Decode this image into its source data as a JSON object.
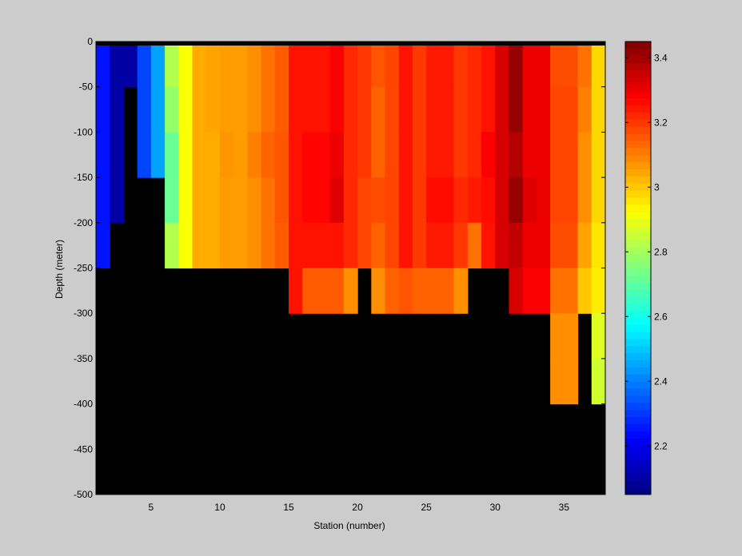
{
  "chart_data": {
    "type": "heatmap",
    "title": "",
    "xlabel": "Station (number)",
    "ylabel": "Depth (meter)",
    "xlim": [
      1,
      38
    ],
    "ylim": [
      -500,
      0
    ],
    "xticks": [
      5,
      10,
      15,
      20,
      25,
      30,
      35
    ],
    "yticks": [
      0,
      -50,
      -100,
      -150,
      -200,
      -250,
      -300,
      -350,
      -400,
      -450,
      -500
    ],
    "colorbar": {
      "colormap": "jet",
      "range": [
        2.05,
        3.45
      ],
      "ticks": [
        2.2,
        2.4,
        2.6,
        2.8,
        3,
        3.2,
        3.4
      ],
      "tick_labels": [
        "2.2",
        "2.4",
        "2.6",
        "2.8",
        "3",
        "3.2",
        "3.4"
      ]
    },
    "grid": false,
    "background_color": "#cccccc",
    "missing_color": "#000000",
    "depth_bins": [
      [
        0,
        -50
      ],
      [
        -50,
        -100
      ],
      [
        -100,
        -150
      ],
      [
        -150,
        -200
      ],
      [
        -200,
        -250
      ],
      [
        -250,
        -300
      ],
      [
        -300,
        -350
      ],
      [
        -350,
        -400
      ]
    ],
    "stations": [
      {
        "station": 1,
        "values": [
          2.25,
          2.25,
          2.25,
          2.25,
          2.25
        ]
      },
      {
        "station": 2,
        "values": [
          2.1,
          2.1,
          2.1,
          2.1
        ]
      },
      {
        "station": 3,
        "values": [
          2.1
        ]
      },
      {
        "station": 4,
        "values": [
          2.32,
          2.32,
          2.32
        ]
      },
      {
        "station": 5,
        "values": [
          2.45,
          2.45,
          2.45
        ]
      },
      {
        "station": 6,
        "values": [
          2.82,
          2.78,
          2.72,
          2.72,
          2.82
        ]
      },
      {
        "station": 7,
        "values": [
          2.92,
          2.92,
          2.92,
          2.92,
          2.92
        ]
      },
      {
        "station": 8,
        "values": [
          3.04,
          3.04,
          3.04,
          3.04,
          3.04
        ]
      },
      {
        "station": 9,
        "values": [
          3.05,
          3.05,
          3.04,
          3.04,
          3.04
        ]
      },
      {
        "station": 10,
        "values": [
          3.06,
          3.06,
          3.07,
          3.06,
          3.06
        ]
      },
      {
        "station": 11,
        "values": [
          3.06,
          3.06,
          3.06,
          3.06,
          3.06
        ]
      },
      {
        "station": 12,
        "values": [
          3.08,
          3.08,
          3.1,
          3.08,
          3.08
        ]
      },
      {
        "station": 13,
        "values": [
          3.12,
          3.12,
          3.14,
          3.12,
          3.12
        ]
      },
      {
        "station": 14,
        "values": [
          3.15,
          3.15,
          3.16,
          3.16,
          3.15
        ]
      },
      {
        "station": 15,
        "values": [
          3.25,
          3.25,
          3.25,
          3.25,
          3.25,
          3.25
        ]
      },
      {
        "station": 16,
        "values": [
          3.25,
          3.25,
          3.27,
          3.27,
          3.25,
          3.15
        ]
      },
      {
        "station": 17,
        "values": [
          3.25,
          3.25,
          3.27,
          3.27,
          3.25,
          3.15
        ]
      },
      {
        "station": 18,
        "values": [
          3.28,
          3.28,
          3.3,
          3.32,
          3.25,
          3.15
        ]
      },
      {
        "station": 19,
        "values": [
          3.22,
          3.22,
          3.22,
          3.22,
          3.22,
          3.08
        ]
      },
      {
        "station": 20,
        "values": [
          3.2,
          3.2,
          3.2,
          3.18,
          3.18
        ]
      },
      {
        "station": 21,
        "values": [
          3.16,
          3.14,
          3.14,
          3.17,
          3.14,
          3.08
        ]
      },
      {
        "station": 22,
        "values": [
          3.18,
          3.18,
          3.18,
          3.18,
          3.18,
          3.14
        ]
      },
      {
        "station": 23,
        "values": [
          3.25,
          3.25,
          3.25,
          3.25,
          3.25,
          3.16
        ]
      },
      {
        "station": 24,
        "values": [
          3.2,
          3.2,
          3.2,
          3.2,
          3.2,
          3.14
        ]
      },
      {
        "station": 25,
        "values": [
          3.24,
          3.24,
          3.24,
          3.26,
          3.24,
          3.14
        ]
      },
      {
        "station": 26,
        "values": [
          3.24,
          3.24,
          3.24,
          3.26,
          3.24,
          3.14
        ]
      },
      {
        "station": 27,
        "values": [
          3.2,
          3.2,
          3.2,
          3.22,
          3.2,
          3.08
        ]
      },
      {
        "station": 28,
        "values": [
          3.22,
          3.22,
          3.22,
          3.24,
          3.12
        ]
      },
      {
        "station": 29,
        "values": [
          3.25,
          3.25,
          3.28,
          3.26,
          3.25
        ]
      },
      {
        "station": 30,
        "values": [
          3.33,
          3.33,
          3.33,
          3.33,
          3.33
        ]
      },
      {
        "station": 31,
        "values": [
          3.42,
          3.42,
          3.38,
          3.42,
          3.36,
          3.33
        ]
      },
      {
        "station": 32,
        "values": [
          3.3,
          3.3,
          3.3,
          3.32,
          3.3,
          3.28
        ]
      },
      {
        "station": 33,
        "values": [
          3.3,
          3.3,
          3.3,
          3.3,
          3.3,
          3.28
        ]
      },
      {
        "station": 34,
        "values": [
          3.17,
          3.18,
          3.18,
          3.18,
          3.17,
          3.12,
          3.08,
          3.08
        ]
      },
      {
        "station": 35,
        "values": [
          3.17,
          3.18,
          3.18,
          3.18,
          3.17,
          3.12,
          3.08,
          3.08
        ]
      },
      {
        "station": 36,
        "values": [
          3.12,
          3.1,
          3.08,
          3.08,
          3.05,
          3.0
        ]
      },
      {
        "station": 37,
        "values": [
          2.98,
          2.98,
          2.98,
          2.98,
          2.96,
          2.95,
          2.88,
          2.86
        ]
      }
    ]
  }
}
